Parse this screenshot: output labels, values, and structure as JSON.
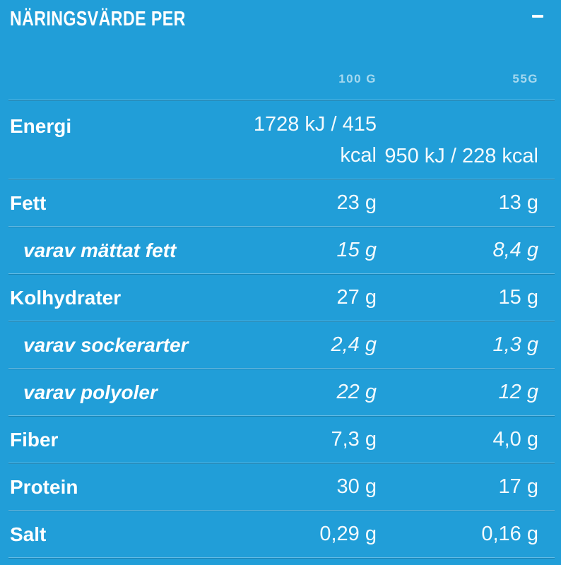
{
  "panel": {
    "title": "NÄRINGSVÄRDE PER",
    "collapse_icon": "minus",
    "colors": {
      "background": "#219ED8",
      "column_header_text": "#A6D9EF",
      "text": "#FFFFFF"
    },
    "columns": [
      "100 G",
      "55G"
    ],
    "rows": [
      {
        "label": "Energi",
        "per_100g": "1728 kJ / 415 kcal",
        "per_55g": "950 kJ / 228 kcal",
        "type": "main"
      },
      {
        "label": "Fett",
        "per_100g": "23 g",
        "per_55g": "13 g",
        "type": "main"
      },
      {
        "label": "varav mättat fett",
        "per_100g": "15 g",
        "per_55g": "8,4 g",
        "type": "sub"
      },
      {
        "label": "Kolhydrater",
        "per_100g": "27 g",
        "per_55g": "15 g",
        "type": "main"
      },
      {
        "label": "varav sockerarter",
        "per_100g": "2,4 g",
        "per_55g": "1,3 g",
        "type": "sub"
      },
      {
        "label": "varav polyoler",
        "per_100g": "22 g",
        "per_55g": "12 g",
        "type": "sub"
      },
      {
        "label": "Fiber",
        "per_100g": "7,3 g",
        "per_55g": "4,0 g",
        "type": "main"
      },
      {
        "label": "Protein",
        "per_100g": "30 g",
        "per_55g": "17 g",
        "type": "main"
      },
      {
        "label": "Salt",
        "per_100g": "0,29 g",
        "per_55g": "0,16 g",
        "type": "main"
      }
    ]
  }
}
